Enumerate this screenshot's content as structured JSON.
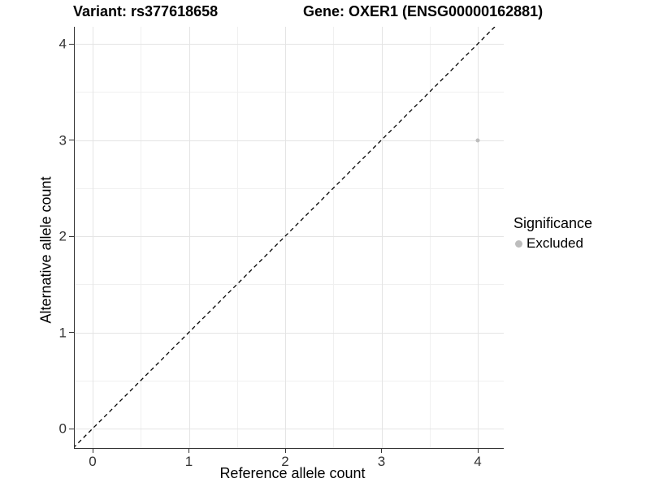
{
  "header": {
    "variant_title": "Variant: rs377618658",
    "gene_title": "Gene: OXER1 (ENSG00000162881)"
  },
  "axes": {
    "x_label": "Reference allele count",
    "y_label": "Alternative allele count"
  },
  "legend": {
    "title": "Significance",
    "items": [
      {
        "label": "Excluded",
        "color": "#bdbdbd"
      }
    ]
  },
  "chart_data": {
    "type": "scatter",
    "title": "Variant: rs377618658 / Gene: OXER1 (ENSG00000162881)",
    "xlabel": "Reference allele count",
    "ylabel": "Alternative allele count",
    "xlim": [
      -0.2,
      4.2
    ],
    "ylim": [
      -0.2,
      4.2
    ],
    "x_ticks": [
      0,
      1,
      2,
      3,
      4
    ],
    "y_ticks": [
      0,
      1,
      2,
      3,
      4
    ],
    "minor_ticks": [
      0.5,
      1.5,
      2.5,
      3.5
    ],
    "grid": true,
    "legend_position": "right",
    "series": [
      {
        "name": "Excluded",
        "color": "#bdbdbd",
        "points": [
          {
            "x": 4,
            "y": 3
          }
        ]
      }
    ],
    "points": [
      {
        "x": 4,
        "y": 3,
        "series": "Excluded",
        "color": "#bdbdbd"
      }
    ],
    "reference_line": {
      "type": "identity y=x",
      "style": "dashed",
      "color": "#000000"
    },
    "colors": {
      "background": "#ffffff",
      "grid_major": "#e4e4e4",
      "grid_minor": "#f0f0f0",
      "axis_line": "#333333",
      "tick_label": "#333333",
      "point": "#bdbdbd"
    }
  }
}
